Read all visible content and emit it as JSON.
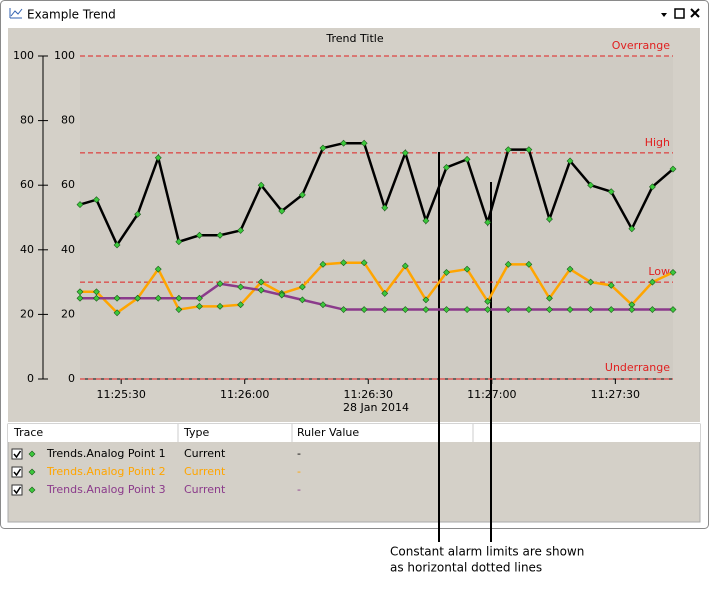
{
  "window": {
    "title": "Example Trend"
  },
  "chart_data": {
    "type": "line",
    "title": "Trend Title",
    "x": [
      "11:25:20",
      "11:25:24",
      "11:25:29",
      "11:25:34",
      "11:25:39",
      "11:25:44",
      "11:25:49",
      "11:25:54",
      "11:25:59",
      "11:26:04",
      "11:26:09",
      "11:26:14",
      "11:26:19",
      "11:26:24",
      "11:26:29",
      "11:26:34",
      "11:26:39",
      "11:26:44",
      "11:26:49",
      "11:26:54",
      "11:26:59",
      "11:27:04",
      "11:27:09",
      "11:27:14",
      "11:27:19",
      "11:27:24",
      "11:27:29",
      "11:27:34",
      "11:27:39",
      "11:27:44"
    ],
    "xlim": [
      "11:25:20",
      "11:27:44"
    ],
    "xticks": [
      "11:25:30",
      "11:26:00",
      "11:26:30",
      "11:27:00",
      "11:27:30"
    ],
    "xlabel": "28 Jan 2014",
    "ylim": [
      0,
      100
    ],
    "yticks": [
      0,
      20,
      40,
      60,
      80,
      100
    ],
    "series": [
      {
        "name": "Trends.Analog Point 1",
        "color": "#000000",
        "values": [
          54,
          55.5,
          41.5,
          51,
          68.5,
          42.5,
          44.5,
          44.5,
          46,
          60,
          52,
          57,
          71.5,
          73,
          73,
          53,
          70,
          49,
          65.5,
          68,
          48.5,
          71,
          71,
          49.5,
          67.5,
          60,
          58,
          46.5,
          59.5,
          65
        ]
      },
      {
        "name": "Trends.Analog Point 2",
        "color": "#ffa500",
        "values": [
          27,
          27,
          20.5,
          25,
          34,
          21.5,
          22.5,
          22.5,
          23,
          30,
          26.5,
          28.5,
          35.5,
          36,
          36,
          26.5,
          35,
          24.5,
          33,
          34,
          24,
          35.5,
          35.5,
          25,
          34,
          30,
          29,
          23,
          30,
          33
        ]
      },
      {
        "name": "Trends.Analog Point 3",
        "color": "#8b3a8b",
        "values": [
          25,
          25,
          25,
          25,
          25,
          25,
          25,
          29.5,
          28.5,
          27.5,
          26,
          24.5,
          23,
          21.5,
          21.5,
          21.5,
          21.5,
          21.5,
          21.5,
          21.5,
          21.5,
          21.5,
          21.5,
          21.5,
          21.5,
          21.5,
          21.5,
          21.5,
          21.5,
          21.5
        ]
      }
    ],
    "limits": [
      {
        "label": "Overrange",
        "value": 100,
        "color": "#e02020"
      },
      {
        "label": "High",
        "value": 70,
        "color": "#e02020"
      },
      {
        "label": "Low",
        "value": 30,
        "color": "#e02020"
      },
      {
        "label": "Underrange",
        "value": 0,
        "color": "#e02020"
      }
    ]
  },
  "table": {
    "columns": [
      "Trace",
      "Type",
      "Ruler Value"
    ],
    "rows": [
      [
        "Trends.Analog Point 1",
        "Current",
        "-"
      ],
      [
        "Trends.Analog Point 2",
        "Current",
        "-"
      ],
      [
        "Trends.Analog Point 3",
        "Current",
        "-"
      ]
    ]
  },
  "annotation": [
    "Constant alarm limits are shown",
    "as horizontal dotted lines"
  ]
}
